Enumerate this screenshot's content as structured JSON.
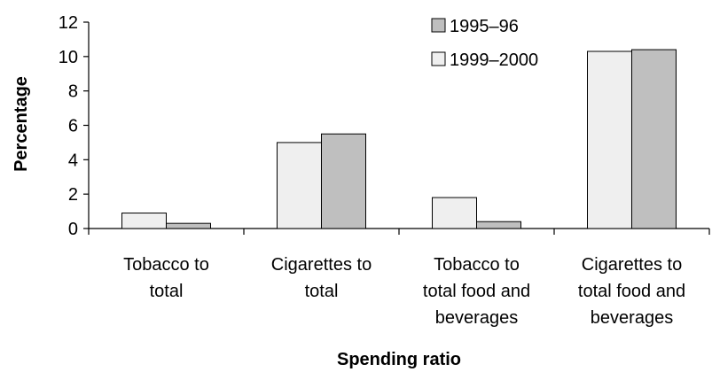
{
  "chart_data": {
    "type": "bar",
    "categories": [
      [
        "Tobacco to",
        "total"
      ],
      [
        "Cigarettes to",
        "total"
      ],
      [
        "Tobacco to",
        "total food and",
        "beverages"
      ],
      [
        "Cigarettes to",
        "total food and",
        "beverages"
      ]
    ],
    "series": [
      {
        "name": "1999–2000",
        "color": "#efefef",
        "values": [
          0.9,
          5.0,
          1.8,
          10.3
        ]
      },
      {
        "name": "1995–96",
        "color": "#bfbfbf",
        "values": [
          0.3,
          5.5,
          0.4,
          10.4
        ]
      }
    ],
    "legend_order": [
      1,
      0
    ],
    "xlabel": "Spending ratio",
    "ylabel": "Percentage",
    "ylim": [
      0,
      12
    ],
    "yticks": [
      "0",
      "2",
      "4",
      "6",
      "8",
      "10",
      "12"
    ],
    "grid": false,
    "legend_position": "top-center"
  }
}
